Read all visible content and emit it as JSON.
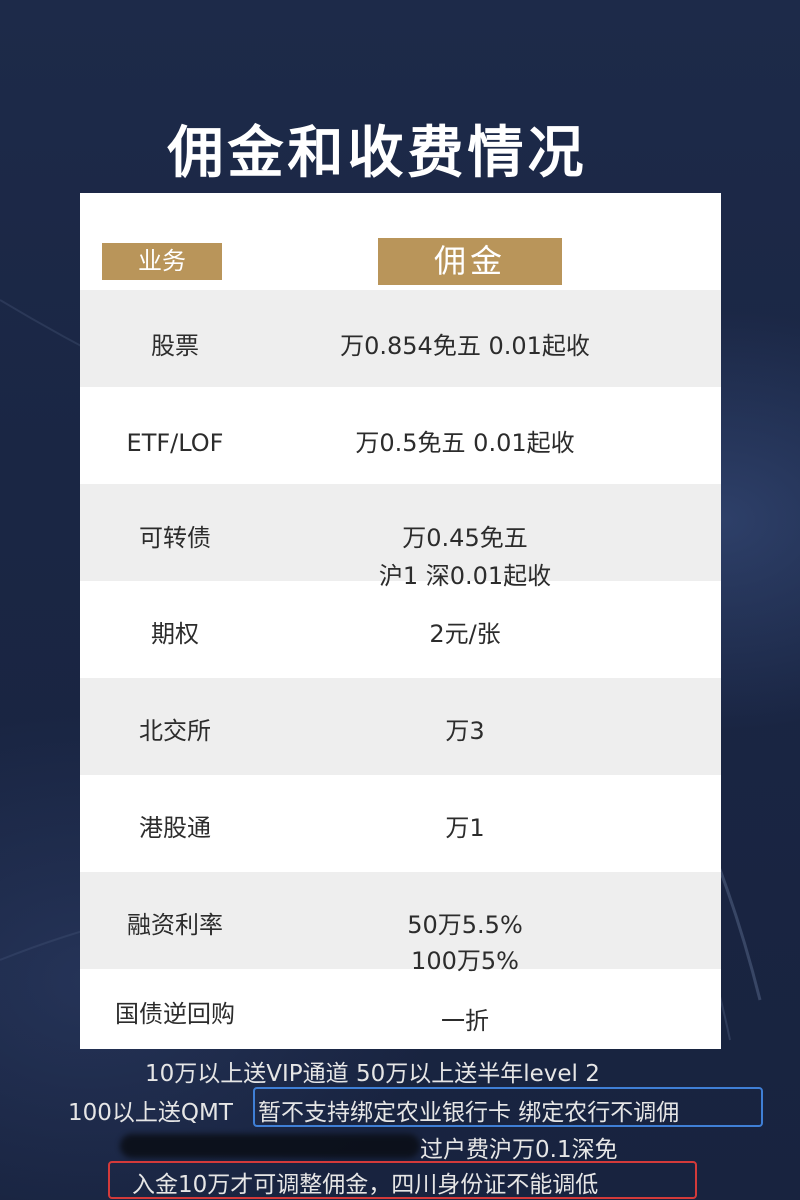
{
  "title": "佣金和收费情况",
  "header": {
    "business": "业务",
    "commission": "佣金"
  },
  "rows": [
    {
      "name": "股票",
      "value": [
        "万0.854免五 0.01起收"
      ]
    },
    {
      "name": "ETF/LOF",
      "value": [
        "万0.5免五 0.01起收"
      ]
    },
    {
      "name": "可转债",
      "value": [
        "万0.45免五",
        "沪1 深0.01起收"
      ]
    },
    {
      "name": "期权",
      "value": [
        "2元/张"
      ]
    },
    {
      "name": "北交所",
      "value": [
        "万3"
      ]
    },
    {
      "name": "港股通",
      "value": [
        "万1"
      ]
    },
    {
      "name": "融资利率",
      "value": [
        "50万5.5%",
        "100万5%"
      ]
    },
    {
      "name": "国债逆回购",
      "value": [
        "一折"
      ]
    }
  ],
  "notes": {
    "line1": "10万以上送VIP通道   50万以上送半年level 2",
    "line2_left": "100以上送QMT",
    "line2_boxed": "暂不支持绑定农业银行卡 绑定农行不调佣",
    "line3": "过户费沪万0.1深免",
    "line4_boxed": "入金10万才可调整佣金，四川身份证不能调低"
  },
  "colors": {
    "background": "#1a2644",
    "gold": "#b9955a",
    "row_shade": "#eeeeee",
    "blue_box": "#3f7fd6",
    "red_box": "#d33a3a"
  }
}
